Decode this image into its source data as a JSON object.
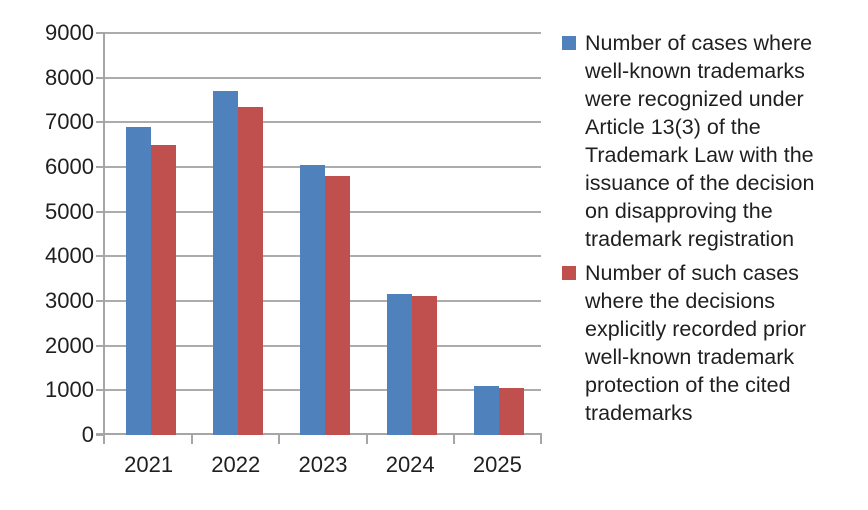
{
  "chart_data": {
    "type": "bar",
    "title": "",
    "categories": [
      "2021",
      "2022",
      "2023",
      "2024",
      "2025"
    ],
    "series": [
      {
        "name": "Number of cases where well-known trademarks were recognized under Article 13(3) of the Trademark Law with the issuance of the decision on disapproving the trademark registration",
        "color": "#4F81BD",
        "values": [
          6900,
          7700,
          6050,
          3160,
          1100
        ]
      },
      {
        "name": "Number of such cases where the decisions explicitly recorded prior well-known trademark protection of the cited trademarks",
        "color": "#C0504D",
        "values": [
          6500,
          7350,
          5800,
          3120,
          1060
        ]
      }
    ],
    "xlabel": "",
    "ylabel": "",
    "ylim": [
      0,
      9000
    ],
    "yticks": [
      0,
      1000,
      2000,
      3000,
      4000,
      5000,
      6000,
      7000,
      8000,
      9000
    ],
    "grid": true,
    "legend_position": "right"
  },
  "legend": {
    "items": [
      {
        "swatch_color": "#4F81BD",
        "text": "Number of cases where\nwell-known trademarks\nwere recognized under\nArticle 13(3) of the\nTrademark Law with the\nissuance of the decision\non disapproving the\ntrademark registration"
      },
      {
        "swatch_color": "#C0504D",
        "text": "Number of such cases\nwhere the decisions\nexplicitly recorded prior\nwell-known trademark\nprotection of the cited\ntrademarks"
      }
    ]
  },
  "colors": {
    "series_blue": "#4F81BD",
    "series_red": "#C0504D",
    "gridline": "#ACACAC",
    "axis": "#A6A6A6",
    "tick_label": "#1F1F1F",
    "legend_text": "#1F1F1F",
    "background": "#FFFFFF"
  }
}
